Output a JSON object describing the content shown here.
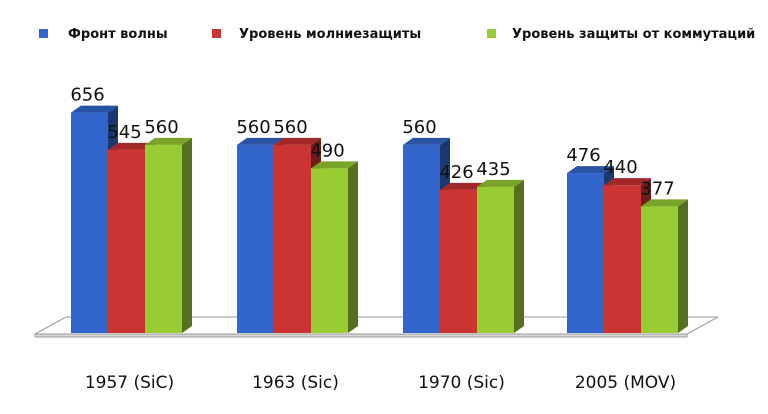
{
  "chart_data": {
    "type": "bar",
    "categories": [
      "1957 (SiC)",
      "1963 (Sic)",
      "1970 (Sic)",
      "2005 (MOV)"
    ],
    "series": [
      {
        "name": "Фронт волны",
        "values": [
          656,
          560,
          560,
          476
        ],
        "color": "#3366cc"
      },
      {
        "name": "Уровень молниезащиты",
        "values": [
          545,
          560,
          426,
          440
        ],
        "color": "#cc3333"
      },
      {
        "name": "Уровень защиты от коммутаций",
        "values": [
          560,
          490,
          435,
          377
        ],
        "color": "#99cc33"
      }
    ],
    "ylim": [
      0,
      700
    ],
    "grid": false,
    "legend_position": "top",
    "style": "3d-column"
  }
}
